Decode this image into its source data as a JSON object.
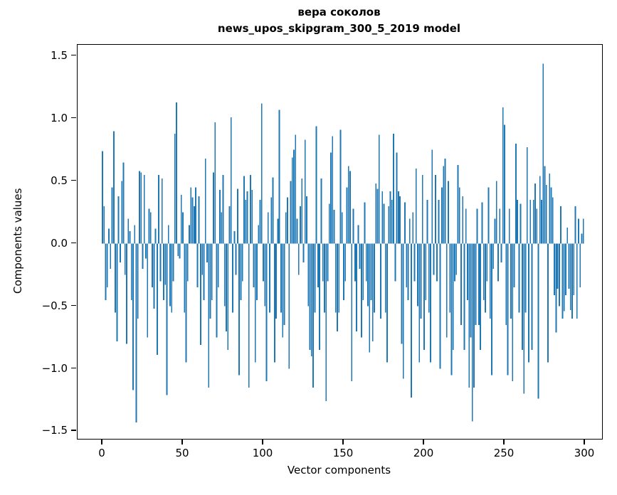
{
  "figure": {
    "title_line1": "вера соколов",
    "title_line2": "news_upos_skipgram_300_5_2019 model"
  },
  "chart_data": {
    "type": "bar",
    "title": "вера соколов\nnews_upos_skipgram_300_5_2019 model",
    "xlabel": "Vector components",
    "ylabel": "Components values",
    "grid": false,
    "legend": null,
    "bar_color": "#1f77b4",
    "xlim": [
      -15.5,
      310.6
    ],
    "ylim": [
      -1.56,
      1.59
    ],
    "x_ticks": [
      {
        "label": "0",
        "value": 0
      },
      {
        "label": "50",
        "value": 50
      },
      {
        "label": "100",
        "value": 100
      },
      {
        "label": "150",
        "value": 150
      },
      {
        "label": "200",
        "value": 200
      },
      {
        "label": "250",
        "value": 250
      },
      {
        "label": "300",
        "value": 300
      }
    ],
    "y_ticks": [
      {
        "label": "1.5",
        "value": 1.5
      },
      {
        "label": "1.0",
        "value": 1.0
      },
      {
        "label": "0.5",
        "value": 0.5
      },
      {
        "label": "0.0",
        "value": 0.0
      },
      {
        "label": "−0.5",
        "value": -0.5
      },
      {
        "label": "−1.0",
        "value": -1.0
      },
      {
        "label": "−1.5",
        "value": -1.5
      }
    ],
    "categories_note": "x = vector component index 0..299",
    "values": [
      0.74,
      0.3,
      -0.45,
      -0.35,
      0.12,
      -0.2,
      0.45,
      0.9,
      -0.55,
      -0.78,
      0.38,
      -0.15,
      0.5,
      0.65,
      -0.25,
      -0.8,
      0.2,
      0.1,
      -0.45,
      -1.17,
      0.15,
      -1.43,
      -0.6,
      0.58,
      0.57,
      -0.2,
      0.55,
      -0.12,
      -0.75,
      0.28,
      0.25,
      -0.35,
      -0.52,
      0.12,
      -0.89,
      0.55,
      -0.3,
      0.52,
      -0.45,
      -0.33,
      -1.21,
      0.15,
      -0.5,
      -0.55,
      -0.3,
      0.88,
      1.13,
      -0.1,
      -0.12,
      0.39,
      0.25,
      -0.55,
      -0.95,
      -0.3,
      0.15,
      0.45,
      0.37,
      0.3,
      0.45,
      -0.35,
      0.38,
      -0.81,
      -0.25,
      -0.45,
      0.68,
      -0.15,
      -1.15,
      -0.6,
      -0.45,
      0.57,
      0.97,
      -0.75,
      -0.35,
      0.43,
      0.25,
      0.55,
      -0.5,
      -0.7,
      -0.85,
      0.3,
      1.01,
      -0.55,
      0.1,
      -0.25,
      0.44,
      -1.05,
      -0.45,
      -0.3,
      0.54,
      0.35,
      0.42,
      -1.15,
      0.55,
      0.43,
      -0.35,
      -0.95,
      -0.45,
      0.15,
      0.35,
      1.12,
      -0.3,
      -0.5,
      -1.1,
      0.25,
      -0.55,
      0.37,
      0.53,
      -0.95,
      -0.6,
      0.2,
      1.07,
      -0.55,
      -0.75,
      -0.65,
      0.25,
      0.37,
      -1.0,
      0.5,
      0.69,
      0.75,
      0.87,
      0.2,
      -0.25,
      0.3,
      0.52,
      -0.15,
      0.83,
      0.38,
      -0.5,
      -0.85,
      -0.9,
      -1.15,
      -0.55,
      0.94,
      -0.35,
      -0.85,
      0.52,
      -0.3,
      -0.55,
      -1.26,
      -0.3,
      0.32,
      0.73,
      0.86,
      0.27,
      -0.55,
      -0.7,
      -0.55,
      0.91,
      0.25,
      -0.45,
      -0.3,
      0.45,
      0.62,
      0.58,
      -1.1,
      0.28,
      -0.3,
      -0.7,
      0.15,
      -0.2,
      -0.75,
      -0.45,
      0.33,
      -0.3,
      -0.5,
      -0.87,
      -0.45,
      -0.78,
      -0.55,
      0.48,
      0.44,
      0.87,
      -0.6,
      0.42,
      0.32,
      -0.55,
      -0.95,
      0.3,
      0.42,
      0.35,
      0.88,
      -0.3,
      0.73,
      0.42,
      0.38,
      -0.8,
      -1.08,
      0.33,
      -0.35,
      -0.45,
      0.2,
      -1.23,
      0.25,
      -0.3,
      0.6,
      -0.5,
      -0.95,
      -0.6,
      0.55,
      -0.85,
      -0.45,
      0.35,
      -0.55,
      -0.95,
      0.75,
      -0.25,
      0.55,
      -0.3,
      0.35,
      -1.0,
      0.45,
      0.62,
      0.68,
      -0.75,
      0.5,
      -0.55,
      -1.05,
      -0.85,
      -0.3,
      -0.25,
      0.63,
      0.45,
      -0.65,
      0.38,
      -0.85,
      0.28,
      -0.45,
      -1.15,
      -0.75,
      -1.42,
      -1.15,
      -0.65,
      0.28,
      -0.65,
      -0.85,
      0.33,
      -0.45,
      -0.55,
      -0.3,
      0.45,
      -0.6,
      -1.05,
      -0.2,
      0.2,
      0.5,
      -0.3,
      0.28,
      -0.15,
      1.09,
      0.95,
      -0.65,
      -1.05,
      0.28,
      -0.6,
      -1.1,
      -0.35,
      0.8,
      0.35,
      -0.55,
      0.32,
      -0.85,
      -1.2,
      -0.55,
      0.77,
      -0.95,
      0.35,
      -0.85,
      0.35,
      0.48,
      0.28,
      -1.24,
      0.54,
      0.35,
      1.44,
      0.62,
      0.47,
      -0.95,
      0.56,
      0.45,
      0.37,
      -0.41,
      -0.71,
      -0.36,
      -0.5,
      0.3,
      -0.6,
      -0.54,
      -0.41,
      0.13,
      -0.36,
      -0.53,
      -0.6,
      -0.41,
      0.3,
      -0.6,
      0.2,
      -0.35,
      0.08,
      0.2
    ]
  }
}
